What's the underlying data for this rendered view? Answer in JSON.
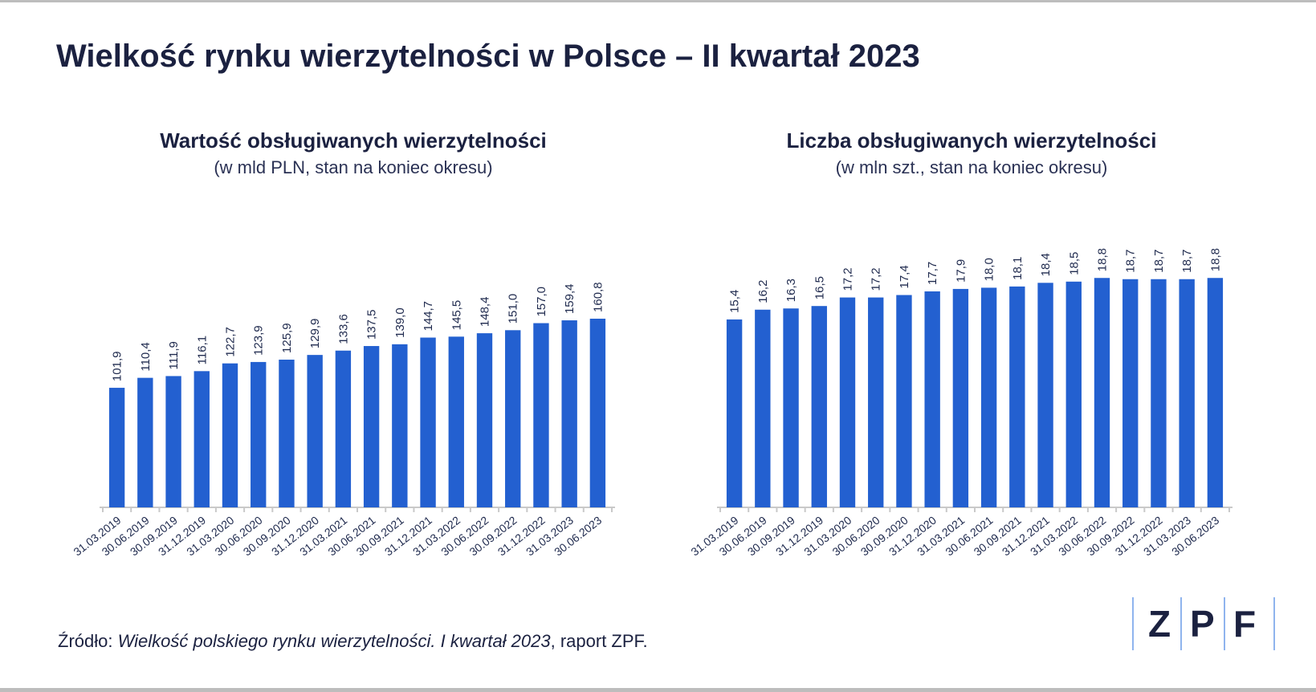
{
  "title": "Wielkość rynku wierzytelności w Polsce – II kwartał 2023",
  "source": {
    "prefix": "Źródło: ",
    "italic": "Wielkość polskiego rynku wierzytelności. I kwartał 2023",
    "suffix": ", raport ZPF."
  },
  "logo": {
    "letters": [
      "Z",
      "P",
      "F"
    ]
  },
  "colors": {
    "bar": "#2360d0",
    "text": "#1b2140",
    "axis": "#c9c9c9",
    "logo_divider": "#8fb4ee"
  },
  "chart_data": [
    {
      "type": "bar",
      "title": "Wartość obsługiwanych wierzytelności",
      "subtitle": "(w mld PLN, stan na koniec okresu)",
      "categories": [
        "31.03.2019",
        "30.06.2019",
        "30.09.2019",
        "31.12.2019",
        "31.03.2020",
        "30.06.2020",
        "30.09.2020",
        "31.12.2020",
        "31.03.2021",
        "30.06.2021",
        "30.09.2021",
        "31.12.2021",
        "31.03.2022",
        "30.06.2022",
        "30.09.2022",
        "31.12.2022",
        "31.03.2023",
        "30.06.2023"
      ],
      "values": [
        101.9,
        110.4,
        111.9,
        116.1,
        122.7,
        123.9,
        125.9,
        129.9,
        133.6,
        137.5,
        139.0,
        144.7,
        145.5,
        148.4,
        151.0,
        157.0,
        159.4,
        160.8
      ],
      "labels": [
        "101,9",
        "110,4",
        "111,9",
        "116,1",
        "122,7",
        "123,9",
        "125,9",
        "129,9",
        "133,6",
        "137,5",
        "139,0",
        "144,7",
        "145,5",
        "148,4",
        "151,0",
        "157,0",
        "159,4",
        "160,8"
      ],
      "ylim": [
        0,
        260
      ],
      "grid": false,
      "legend": "none"
    },
    {
      "type": "bar",
      "title": "Liczba obsługiwanych wierzytelności",
      "subtitle": "(w mln szt., stan na koniec okresu)",
      "categories": [
        "31.03.2019",
        "30.06.2019",
        "30.09.2019",
        "31.12.2019",
        "31.03.2020",
        "30.06.2020",
        "30.09.2020",
        "31.12.2020",
        "31.03.2021",
        "30.06.2021",
        "30.09.2021",
        "31.12.2021",
        "31.03.2022",
        "30.06.2022",
        "30.09.2022",
        "31.12.2022",
        "31.03.2023",
        "30.06.2023"
      ],
      "values": [
        15.4,
        16.2,
        16.3,
        16.5,
        17.2,
        17.2,
        17.4,
        17.7,
        17.9,
        18.0,
        18.1,
        18.4,
        18.5,
        18.8,
        18.7,
        18.7,
        18.7,
        18.8
      ],
      "labels": [
        "15,4",
        "16,2",
        "16,3",
        "16,5",
        "17,2",
        "17,2",
        "17,4",
        "17,7",
        "17,9",
        "18,0",
        "18,1",
        "18,4",
        "18,5",
        "18,8",
        "18,7",
        "18,7",
        "18,7",
        "18,8"
      ],
      "ylim": [
        0,
        25
      ],
      "grid": false,
      "legend": "none"
    }
  ]
}
